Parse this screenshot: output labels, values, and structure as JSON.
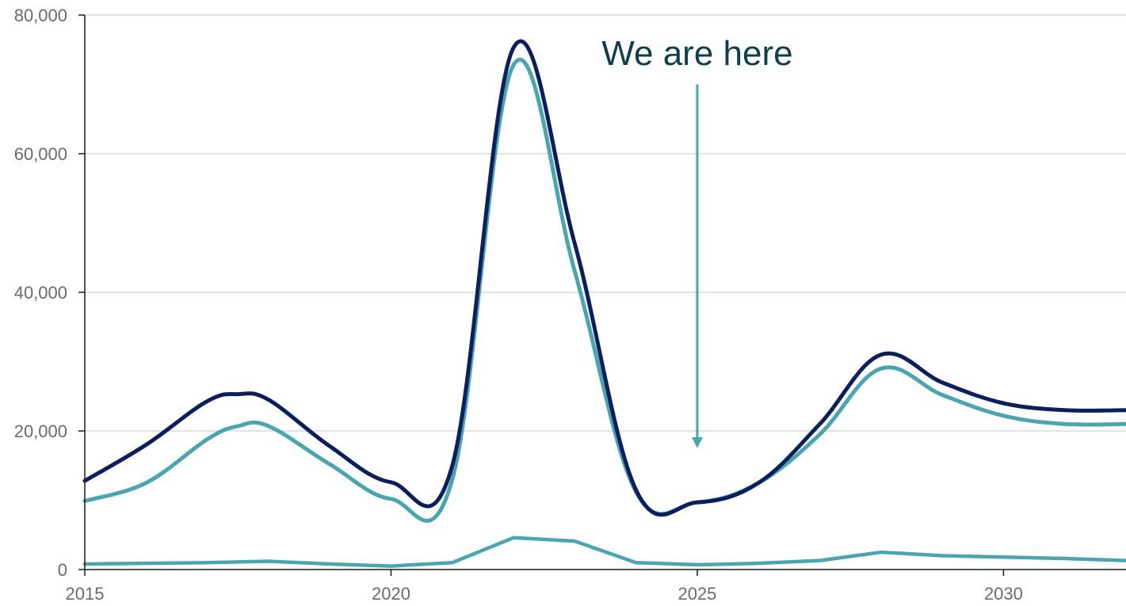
{
  "chart_data": {
    "type": "line",
    "title": "",
    "xlabel": "",
    "ylabel": "",
    "xlim": [
      2015,
      2032
    ],
    "ylim": [
      0,
      80000
    ],
    "x_ticks": [
      2015,
      2020,
      2025,
      2030
    ],
    "x_tick_labels": [
      "2015",
      "2020",
      "2025",
      "2030"
    ],
    "y_ticks": [
      0,
      20000,
      40000,
      60000,
      80000
    ],
    "y_tick_labels": [
      "0",
      "20,000",
      "40,000",
      "60,000",
      "80,000"
    ],
    "grid": true,
    "x": [
      2015,
      2016,
      2017,
      2017.5,
      2018,
      2019,
      2020,
      2021,
      2022,
      2023,
      2024,
      2025,
      2026,
      2027,
      2028,
      2029,
      2030,
      2031,
      2032
    ],
    "series": [
      {
        "color": "#0b1f5c",
        "values": [
          12800,
          18000,
          24300,
          25300,
          24500,
          17800,
          12600,
          15000,
          75300,
          47000,
          11500,
          9700,
          12500,
          21000,
          31000,
          27000,
          24000,
          23000,
          23000
        ]
      },
      {
        "color": "#4aa5b0",
        "values": [
          9900,
          12500,
          18800,
          20700,
          20700,
          15200,
          10200,
          13000,
          72800,
          43000,
          11200,
          9700,
          12500,
          19500,
          29000,
          25200,
          22200,
          21000,
          21000
        ]
      },
      {
        "color": "#4aa5b0",
        "values": [
          800,
          900,
          1000,
          1100,
          1200,
          800,
          500,
          1000,
          4600,
          4100,
          1000,
          700,
          900,
          1300,
          2500,
          2000,
          1800,
          1600,
          1300
        ]
      }
    ],
    "annotations": [
      {
        "text": "We are here",
        "x": 2025,
        "arrow_from_y": 70000,
        "arrow_to_y": 17500,
        "color": "#4aa5b0",
        "text_color": "#0e3f4a"
      }
    ]
  }
}
